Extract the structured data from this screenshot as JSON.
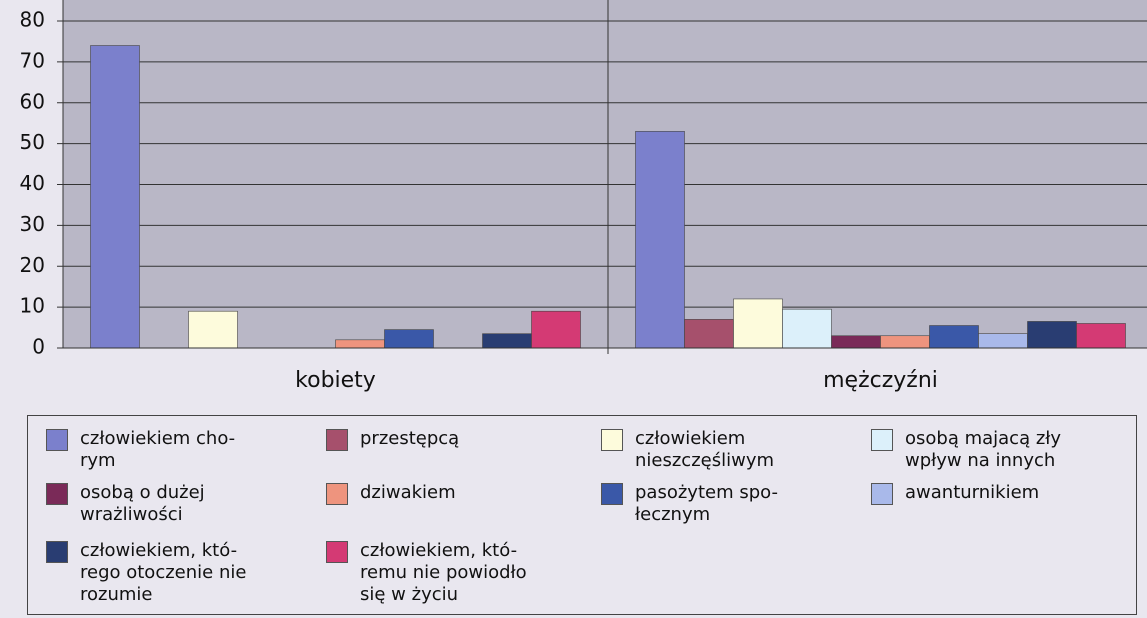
{
  "chart_data": {
    "type": "bar",
    "categories": [
      "kobiety",
      "mężczyźni"
    ],
    "ylim": [
      0,
      80
    ],
    "yticks": [
      0,
      10,
      20,
      30,
      40,
      50,
      60,
      70,
      80
    ],
    "grid": true,
    "series": [
      {
        "name": "człowiekiem cho-\nrym",
        "color": "#7b80cc",
        "values": [
          74,
          53
        ]
      },
      {
        "name": "przestępcą",
        "color": "#a6506c",
        "values": [
          0,
          7
        ]
      },
      {
        "name": "człowiekiem\nnieszczęśliwym",
        "color": "#fdfbdc",
        "values": [
          9,
          12
        ]
      },
      {
        "name": "osobą majacą zły\nwpływ na innych",
        "color": "#dcf0fa",
        "values": [
          0,
          9.5
        ]
      },
      {
        "name": "osobą o dużej\nwrażliwości",
        "color": "#7a2a58",
        "values": [
          0,
          3
        ]
      },
      {
        "name": "dziwakiem",
        "color": "#ee947e",
        "values": [
          2,
          3
        ]
      },
      {
        "name": "pasożytem spo-\nłecznym",
        "color": "#3a58a8",
        "values": [
          4.5,
          5.5
        ]
      },
      {
        "name": "awanturnikiem",
        "color": "#a9b9ea",
        "values": [
          0,
          3.5
        ]
      },
      {
        "name": "człowiekiem, któ-\nrego otoczenie nie\nrozumie",
        "color": "#293d72",
        "values": [
          3.5,
          6.5
        ]
      },
      {
        "name": "człowiekiem, któ-\nremu nie powiodło\nsię w życiu",
        "color": "#d43a74",
        "values": [
          9,
          6
        ]
      }
    ]
  }
}
